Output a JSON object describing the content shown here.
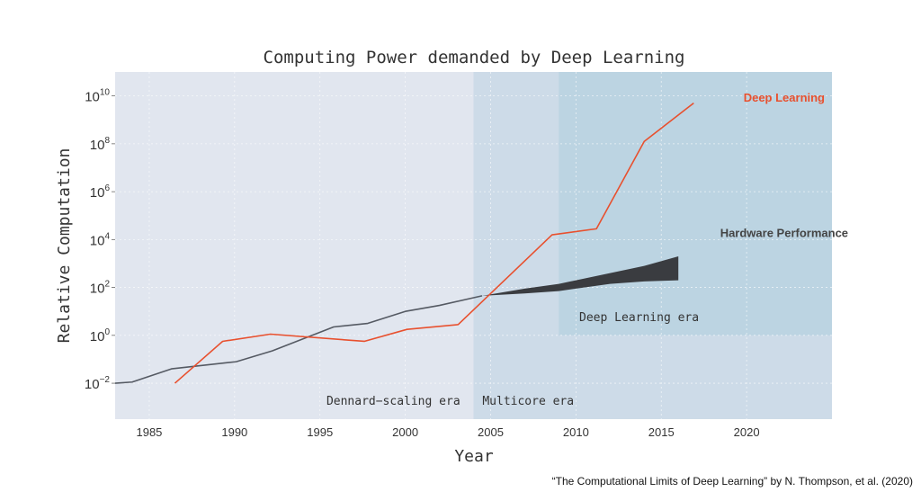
{
  "chart_data": {
    "type": "line",
    "title": "Computing Power demanded by Deep Learning",
    "xlabel": "Year",
    "ylabel": "Relative Computation",
    "xlim": [
      1983,
      2025
    ],
    "ylim_log10": [
      -3.5,
      11
    ],
    "y_scale": "log",
    "grid": true,
    "x_ticks": [
      {
        "value": 1985,
        "label": "1985"
      },
      {
        "value": 1990,
        "label": "1990"
      },
      {
        "value": 1995,
        "label": "1995"
      },
      {
        "value": 2000,
        "label": "2000"
      },
      {
        "value": 2005,
        "label": "2005"
      },
      {
        "value": 2010,
        "label": "2010"
      },
      {
        "value": 2015,
        "label": "2015"
      },
      {
        "value": 2020,
        "label": "2020"
      }
    ],
    "y_ticks": [
      {
        "exp": -2,
        "base": "10",
        "sup": "−2"
      },
      {
        "exp": 0,
        "base": "10",
        "sup": "0"
      },
      {
        "exp": 2,
        "base": "10",
        "sup": "2"
      },
      {
        "exp": 4,
        "base": "10",
        "sup": "4"
      },
      {
        "exp": 6,
        "base": "10",
        "sup": "6"
      },
      {
        "exp": 8,
        "base": "10",
        "sup": "8"
      },
      {
        "exp": 10,
        "base": "10",
        "sup": "10"
      }
    ],
    "regions": [
      {
        "name": "dennard-scaling-era",
        "label": "Dennard−scaling era",
        "x0": 1983,
        "x1": 2004,
        "y0_log10": -3.5,
        "y1_log10": 11,
        "color": "#e1e6ef",
        "label_x": 1999.3,
        "label_y_log10": -2.75
      },
      {
        "name": "multicore-era",
        "label": "Multicore era",
        "x0": 2004,
        "x1": 2025,
        "y0_log10": -3.5,
        "y1_log10": 11,
        "color": "#cddbe8",
        "label_x": 2007.2,
        "label_y_log10": -2.75
      },
      {
        "name": "deep-learning-era",
        "label": "Deep Learning era",
        "x0": 2009,
        "x1": 2025,
        "y0_log10": 0,
        "y1_log10": 11,
        "color": "#bcd4e2",
        "label_x": 2013.7,
        "label_y_log10": 0.75
      }
    ],
    "series": [
      {
        "name": "Deep Learning",
        "color": "#e8502e",
        "label_x": 2022.2,
        "label_y_log10": 9.95,
        "x": [
          1986.5,
          1989.3,
          1992.1,
          1997.6,
          2000.1,
          2003.1,
          2008.6,
          2011.2,
          2014,
          2016.9
        ],
        "y_log10": [
          -2,
          -0.25,
          0.05,
          -0.25,
          0.25,
          0.45,
          4.2,
          4.45,
          8.1,
          9.7
        ]
      },
      {
        "name": "Hardware Performance",
        "color": "#555a63",
        "label_x": 2022.2,
        "label_y_log10": 4.3,
        "x": [
          1983,
          1984,
          1986.3,
          1990.1,
          1992.2,
          1995.8,
          1997.8,
          2000,
          2002,
          2004.5
        ],
        "y_log10": [
          -2,
          -1.95,
          -1.4,
          -1.1,
          -0.65,
          0.35,
          0.5,
          1,
          1.25,
          1.65
        ],
        "band": {
          "x": [
            2004.5,
            2007,
            2009,
            2012,
            2014,
            2016
          ],
          "upper_log10": [
            1.65,
            1.95,
            2.15,
            2.6,
            2.9,
            3.3
          ],
          "lower_log10": [
            1.65,
            1.75,
            1.85,
            2.15,
            2.25,
            2.3
          ]
        }
      }
    ],
    "caption": "“The Computational Limits of Deep Learning” by N. Thompson, et al. (2020)"
  }
}
